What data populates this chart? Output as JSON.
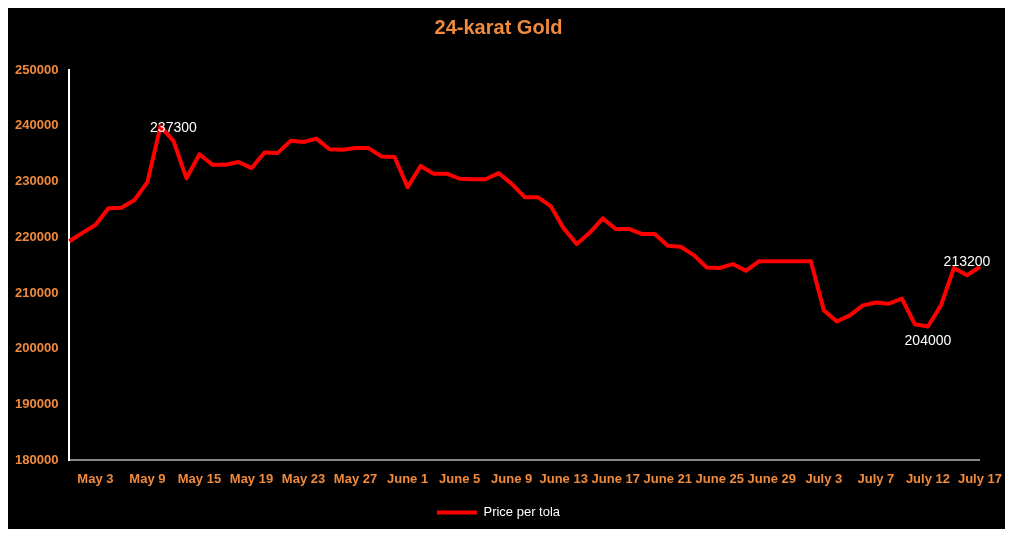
{
  "chart_data": {
    "type": "line",
    "title": "24-karat Gold",
    "categories": [
      null,
      null,
      "May 3",
      null,
      null,
      null,
      "May 9",
      null,
      null,
      null,
      "May 15",
      null,
      null,
      null,
      "May 19",
      null,
      null,
      null,
      "May 23",
      null,
      null,
      null,
      "May 27",
      null,
      null,
      null,
      "June 1",
      null,
      null,
      null,
      "June 5",
      null,
      null,
      null,
      "June 9",
      null,
      null,
      null,
      "June 13",
      null,
      null,
      null,
      "June 17",
      null,
      null,
      null,
      "June 21",
      null,
      null,
      null,
      "June 25",
      null,
      null,
      null,
      "June 29",
      null,
      null,
      null,
      "July 3",
      null,
      null,
      null,
      "July 7",
      null,
      null,
      null,
      "July 12",
      null,
      null,
      null,
      "July 17"
    ],
    "series": [
      {
        "name": "Price per tola",
        "color": "#ff0000",
        "values": [
          219300,
          220800,
          222200,
          225200,
          225300,
          226700,
          229900,
          239900,
          237300,
          230600,
          234900,
          233000,
          233000,
          233500,
          232400,
          235200,
          235100,
          237300,
          237100,
          237700,
          235800,
          235700,
          236000,
          236000,
          234500,
          234400,
          229000,
          232800,
          231400,
          231400,
          230500,
          230400,
          230400,
          231500,
          229600,
          227200,
          227200,
          225600,
          221600,
          218800,
          220800,
          223400,
          221500,
          221500,
          220600,
          220600,
          218500,
          218300,
          216800,
          214600,
          214500,
          215200,
          214000,
          215700,
          215700,
          215700,
          215700,
          215700,
          206900,
          204900,
          206000,
          207800,
          208300,
          208100,
          209000,
          204400,
          204000,
          207800,
          214500,
          213200,
          214700
        ],
        "value_labels": [
          null,
          null,
          null,
          null,
          null,
          null,
          null,
          null,
          "237300",
          null,
          null,
          null,
          null,
          null,
          null,
          null,
          null,
          null,
          null,
          null,
          null,
          null,
          null,
          null,
          null,
          null,
          null,
          null,
          null,
          null,
          null,
          null,
          null,
          null,
          null,
          null,
          null,
          null,
          null,
          null,
          null,
          null,
          null,
          null,
          null,
          null,
          null,
          null,
          null,
          null,
          null,
          null,
          null,
          null,
          null,
          null,
          null,
          null,
          null,
          null,
          null,
          null,
          null,
          null,
          null,
          null,
          "204000",
          null,
          null,
          "213200",
          null
        ]
      }
    ],
    "ylim": [
      180000,
      250000
    ],
    "yticks": [
      180000,
      190000,
      200000,
      210000,
      220000,
      230000,
      240000,
      250000
    ],
    "grid": false,
    "legend": "bottom",
    "marker": "none"
  }
}
